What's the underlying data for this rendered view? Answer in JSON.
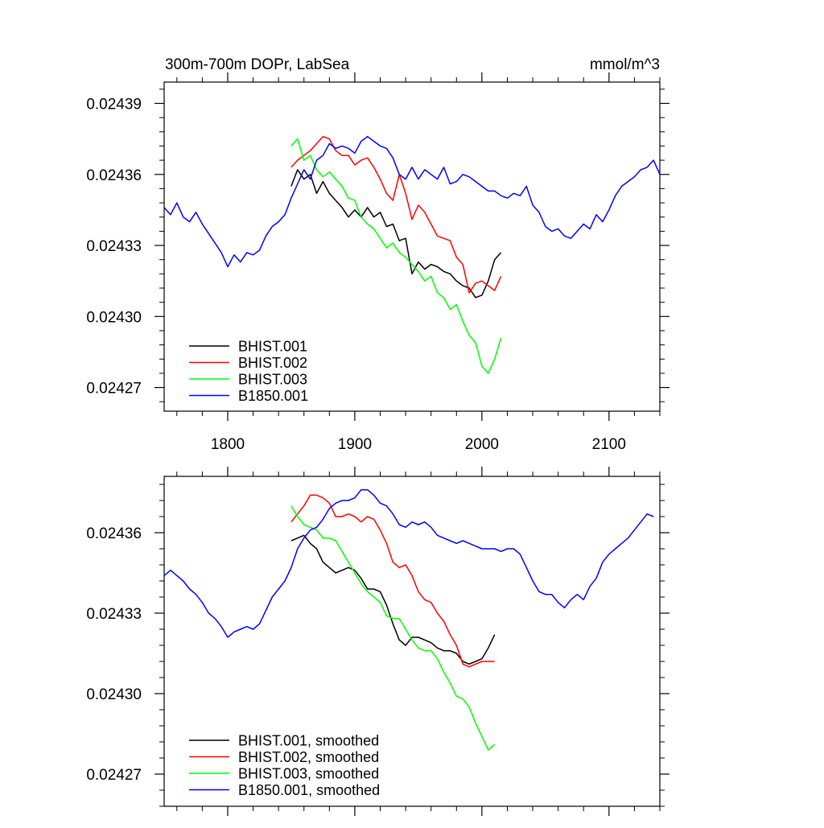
{
  "chart_data": [
    {
      "type": "line",
      "title": "300m-700m DOPr, LabSea",
      "units": "mmol/m^3",
      "xlabel": "",
      "ylabel": "",
      "xlim": [
        1750,
        2140
      ],
      "ylim": [
        0.02426,
        0.024399
      ],
      "xticks": [
        1800,
        1900,
        2000,
        2100
      ],
      "xtick_labels": [
        "1800",
        "1900",
        "2000",
        "2100"
      ],
      "yticks": [
        0.02427,
        0.0243,
        0.02433,
        0.02436,
        0.02439
      ],
      "ytick_labels": [
        "0.02427",
        "0.02430",
        "0.02433",
        "0.02436",
        "0.02439"
      ],
      "grid": false,
      "legend_position": "bottom-left",
      "series": [
        {
          "name": "BHIST.001",
          "color": "#000000",
          "x": [
            1850,
            1855,
            1860,
            1865,
            1870,
            1875,
            1880,
            1885,
            1890,
            1895,
            1900,
            1905,
            1910,
            1915,
            1920,
            1925,
            1930,
            1935,
            1940,
            1945,
            1950,
            1955,
            1960,
            1965,
            1970,
            1975,
            1980,
            1985,
            1990,
            1995,
            2000,
            2005,
            2010,
            2015
          ],
          "values": [
            0.024355,
            0.024362,
            0.024358,
            0.02436,
            0.024352,
            0.024357,
            0.024352,
            0.024349,
            0.024346,
            0.024342,
            0.024345,
            0.024342,
            0.024346,
            0.024342,
            0.024344,
            0.024338,
            0.024339,
            0.024332,
            0.024333,
            0.024318,
            0.024323,
            0.02432,
            0.024322,
            0.024321,
            0.024319,
            0.024318,
            0.024315,
            0.024313,
            0.024312,
            0.024308,
            0.024309,
            0.024315,
            0.024324,
            0.024327
          ]
        },
        {
          "name": "BHIST.002",
          "color": "#ff0000",
          "x": [
            1850,
            1855,
            1860,
            1865,
            1870,
            1875,
            1880,
            1885,
            1890,
            1895,
            1900,
            1905,
            1910,
            1915,
            1920,
            1925,
            1930,
            1935,
            1940,
            1945,
            1950,
            1955,
            1960,
            1965,
            1970,
            1975,
            1980,
            1985,
            1990,
            1995,
            2000,
            2005,
            2010,
            2015
          ],
          "values": [
            0.024363,
            0.024366,
            0.024368,
            0.02437,
            0.024373,
            0.024376,
            0.024375,
            0.02437,
            0.024368,
            0.024368,
            0.024364,
            0.024366,
            0.024367,
            0.024363,
            0.024358,
            0.024352,
            0.024349,
            0.02436,
            0.024352,
            0.024341,
            0.024347,
            0.024344,
            0.024339,
            0.024334,
            0.024333,
            0.024332,
            0.024325,
            0.024322,
            0.02431,
            0.024314,
            0.024315,
            0.024313,
            0.024311,
            0.024317
          ]
        },
        {
          "name": "BHIST.003",
          "color": "#00ff00",
          "x": [
            1850,
            1855,
            1860,
            1865,
            1870,
            1875,
            1880,
            1885,
            1890,
            1895,
            1900,
            1905,
            1910,
            1915,
            1920,
            1925,
            1930,
            1935,
            1940,
            1945,
            1950,
            1955,
            1960,
            1965,
            1970,
            1975,
            1980,
            1985,
            1990,
            1995,
            2000,
            2005,
            2010,
            2015
          ],
          "values": [
            0.024372,
            0.024375,
            0.024366,
            0.024368,
            0.024362,
            0.024359,
            0.024361,
            0.024358,
            0.024355,
            0.02435,
            0.024349,
            0.024342,
            0.024339,
            0.024337,
            0.024333,
            0.024329,
            0.024331,
            0.024327,
            0.024325,
            0.024322,
            0.024319,
            0.024315,
            0.024317,
            0.02431,
            0.024308,
            0.024303,
            0.024305,
            0.024298,
            0.024292,
            0.024289,
            0.024279,
            0.024276,
            0.024282,
            0.024291
          ]
        },
        {
          "name": "B1850.001",
          "color": "#0000ff",
          "x": [
            1750,
            1755,
            1760,
            1765,
            1770,
            1775,
            1780,
            1785,
            1790,
            1795,
            1800,
            1805,
            1810,
            1815,
            1820,
            1825,
            1830,
            1835,
            1840,
            1845,
            1850,
            1855,
            1860,
            1865,
            1870,
            1875,
            1880,
            1885,
            1890,
            1895,
            1900,
            1905,
            1910,
            1915,
            1920,
            1925,
            1930,
            1935,
            1940,
            1945,
            1950,
            1955,
            1960,
            1965,
            1970,
            1975,
            1980,
            1985,
            1990,
            1995,
            2000,
            2005,
            2010,
            2015,
            2020,
            2025,
            2030,
            2035,
            2040,
            2045,
            2050,
            2055,
            2060,
            2065,
            2070,
            2075,
            2080,
            2085,
            2090,
            2095,
            2100,
            2105,
            2110,
            2115,
            2120,
            2125,
            2130,
            2135,
            2140
          ],
          "values": [
            0.024346,
            0.024343,
            0.024348,
            0.024342,
            0.02434,
            0.024344,
            0.024339,
            0.024335,
            0.024331,
            0.024327,
            0.024321,
            0.024326,
            0.024323,
            0.024327,
            0.024326,
            0.024328,
            0.024334,
            0.024338,
            0.02434,
            0.024343,
            0.02435,
            0.024356,
            0.024362,
            0.024358,
            0.024366,
            0.024368,
            0.024373,
            0.024371,
            0.024372,
            0.024371,
            0.024369,
            0.024374,
            0.024376,
            0.024374,
            0.024372,
            0.024371,
            0.024367,
            0.02436,
            0.024358,
            0.024363,
            0.024358,
            0.024362,
            0.02436,
            0.024358,
            0.024363,
            0.024356,
            0.024357,
            0.02436,
            0.024359,
            0.024357,
            0.024355,
            0.024353,
            0.024353,
            0.024351,
            0.02435,
            0.024352,
            0.024351,
            0.024355,
            0.024347,
            0.024344,
            0.024338,
            0.024336,
            0.024337,
            0.024334,
            0.024333,
            0.024336,
            0.024339,
            0.024337,
            0.024343,
            0.02434,
            0.024345,
            0.024351,
            0.024355,
            0.024357,
            0.024359,
            0.024362,
            0.024363,
            0.024366,
            0.02436
          ]
        }
      ]
    },
    {
      "type": "line",
      "title": "",
      "xlabel": "",
      "ylabel": "",
      "xlim": [
        1750,
        2140
      ],
      "ylim": [
        0.024258,
        0.024381
      ],
      "xticks": [
        1800,
        1900,
        2000,
        2100
      ],
      "yticks": [
        0.02427,
        0.0243,
        0.02433,
        0.02436
      ],
      "ytick_labels": [
        "0.02427",
        "0.02430",
        "0.02433",
        "0.02436"
      ],
      "grid": false,
      "legend_position": "bottom-left",
      "series": [
        {
          "name": "BHIST.001, smoothed",
          "color": "#000000",
          "x": [
            1850,
            1855,
            1860,
            1865,
            1870,
            1875,
            1880,
            1885,
            1890,
            1895,
            1900,
            1905,
            1910,
            1915,
            1920,
            1925,
            1930,
            1935,
            1940,
            1945,
            1950,
            1955,
            1960,
            1965,
            1970,
            1975,
            1980,
            1985,
            1990,
            1995,
            2000,
            2005,
            2010
          ],
          "values": [
            0.024357,
            0.024358,
            0.024359,
            0.024356,
            0.024354,
            0.024349,
            0.024347,
            0.024345,
            0.024346,
            0.024347,
            0.024346,
            0.024343,
            0.024339,
            0.024339,
            0.024338,
            0.024333,
            0.024326,
            0.02432,
            0.024318,
            0.024321,
            0.024321,
            0.02432,
            0.024319,
            0.024317,
            0.024316,
            0.024316,
            0.024315,
            0.024312,
            0.024311,
            0.024312,
            0.024313,
            0.024317,
            0.024322
          ]
        },
        {
          "name": "BHIST.002, smoothed",
          "color": "#ff0000",
          "x": [
            1850,
            1855,
            1860,
            1865,
            1870,
            1875,
            1880,
            1885,
            1890,
            1895,
            1900,
            1905,
            1910,
            1915,
            1920,
            1925,
            1930,
            1935,
            1940,
            1945,
            1950,
            1955,
            1960,
            1965,
            1970,
            1975,
            1980,
            1985,
            1990,
            1995,
            2000,
            2005,
            2010
          ],
          "values": [
            0.024364,
            0.024367,
            0.02437,
            0.024374,
            0.024374,
            0.024373,
            0.024371,
            0.024366,
            0.024366,
            0.024367,
            0.024366,
            0.024364,
            0.024366,
            0.024365,
            0.024361,
            0.024356,
            0.024349,
            0.024347,
            0.024348,
            0.024344,
            0.024338,
            0.024335,
            0.024334,
            0.02433,
            0.024327,
            0.024322,
            0.024318,
            0.024311,
            0.02431,
            0.024311,
            0.024312,
            0.024312,
            0.024312
          ]
        },
        {
          "name": "BHIST.003, smoothed",
          "color": "#00ff00",
          "x": [
            1850,
            1855,
            1860,
            1865,
            1870,
            1875,
            1880,
            1885,
            1890,
            1895,
            1900,
            1905,
            1910,
            1915,
            1920,
            1925,
            1930,
            1935,
            1940,
            1945,
            1950,
            1955,
            1960,
            1965,
            1970,
            1975,
            1980,
            1985,
            1990,
            1995,
            2000,
            2005,
            2010
          ],
          "values": [
            0.02437,
            0.024366,
            0.024363,
            0.024362,
            0.024361,
            0.024358,
            0.024358,
            0.024357,
            0.024353,
            0.024349,
            0.024345,
            0.024341,
            0.024338,
            0.024336,
            0.024334,
            0.024329,
            0.024328,
            0.024328,
            0.024324,
            0.02432,
            0.024317,
            0.024316,
            0.024316,
            0.024313,
            0.024308,
            0.024304,
            0.024299,
            0.024298,
            0.024295,
            0.024289,
            0.024284,
            0.024279,
            0.024281
          ]
        },
        {
          "name": "B1850.001, smoothed",
          "color": "#0000ff",
          "x": [
            1750,
            1755,
            1760,
            1765,
            1770,
            1775,
            1780,
            1785,
            1790,
            1795,
            1800,
            1805,
            1810,
            1815,
            1820,
            1825,
            1830,
            1835,
            1840,
            1845,
            1850,
            1855,
            1860,
            1865,
            1870,
            1875,
            1880,
            1885,
            1890,
            1895,
            1900,
            1905,
            1910,
            1915,
            1920,
            1925,
            1930,
            1935,
            1940,
            1945,
            1950,
            1955,
            1960,
            1965,
            1970,
            1975,
            1980,
            1985,
            1990,
            1995,
            2000,
            2005,
            2010,
            2015,
            2020,
            2025,
            2030,
            2035,
            2040,
            2045,
            2050,
            2055,
            2060,
            2065,
            2070,
            2075,
            2080,
            2085,
            2090,
            2095,
            2100,
            2105,
            2110,
            2115,
            2120,
            2125,
            2130,
            2135
          ],
          "values": [
            0.024344,
            0.024346,
            0.024344,
            0.024342,
            0.024339,
            0.024337,
            0.024334,
            0.02433,
            0.024328,
            0.024325,
            0.024321,
            0.024323,
            0.024324,
            0.024325,
            0.024324,
            0.024326,
            0.024331,
            0.024336,
            0.024339,
            0.024342,
            0.024347,
            0.024354,
            0.024358,
            0.024361,
            0.024362,
            0.024365,
            0.024369,
            0.024371,
            0.024372,
            0.024372,
            0.024373,
            0.024376,
            0.024376,
            0.024374,
            0.024371,
            0.02437,
            0.024367,
            0.024363,
            0.024362,
            0.024364,
            0.024363,
            0.024364,
            0.024362,
            0.024359,
            0.024358,
            0.024357,
            0.024356,
            0.024357,
            0.024356,
            0.024355,
            0.024354,
            0.024354,
            0.024354,
            0.024353,
            0.024354,
            0.024354,
            0.024352,
            0.024347,
            0.024342,
            0.024338,
            0.024337,
            0.024337,
            0.024334,
            0.024332,
            0.024335,
            0.024337,
            0.024335,
            0.02434,
            0.024343,
            0.024349,
            0.024352,
            0.024354,
            0.024356,
            0.024358,
            0.024361,
            0.024364,
            0.024367,
            0.024366
          ]
        }
      ]
    }
  ]
}
